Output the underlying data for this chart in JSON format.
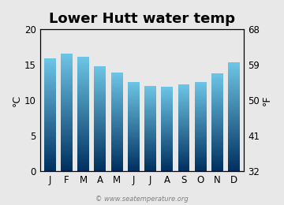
{
  "title": "Lower Hutt water temp",
  "months": [
    "J",
    "F",
    "M",
    "A",
    "M",
    "J",
    "J",
    "A",
    "S",
    "O",
    "N",
    "D"
  ],
  "values_c": [
    15.9,
    16.6,
    16.1,
    14.8,
    13.9,
    12.6,
    12.0,
    11.9,
    12.2,
    12.6,
    13.8,
    15.3
  ],
  "ylim_c": [
    0,
    20
  ],
  "yticks_c": [
    0,
    5,
    10,
    15,
    20
  ],
  "yticks_f": [
    32,
    41,
    50,
    59,
    68
  ],
  "ylabel_left": "°C",
  "ylabel_right": "°F",
  "watermark": "© www.seatemperature.org",
  "background_color": "#e8e8e8",
  "bar_color_top": "#6ec6e6",
  "bar_color_bottom": "#003060",
  "title_fontsize": 13,
  "tick_fontsize": 8.5,
  "label_fontsize": 9
}
